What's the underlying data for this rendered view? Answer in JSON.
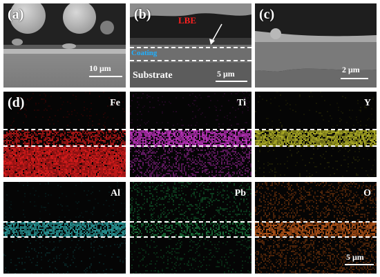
{
  "figure": {
    "panel_a": {
      "label": "(a)",
      "scale_bar": "10 μm"
    },
    "panel_b": {
      "label": "(b)",
      "lbe_label": "LBE",
      "coating_label": "Coating",
      "substrate_label": "Substrate",
      "scale_bar": "5 μm"
    },
    "panel_c": {
      "label": "(c)",
      "scale_bar": "2 μm"
    },
    "maps": [
      {
        "label": "(d)",
        "element": "Fe",
        "color": "#ff2020"
      },
      {
        "label": "",
        "element": "Ti",
        "color": "#e03ce0"
      },
      {
        "label": "",
        "element": "Y",
        "color": "#d8d830"
      },
      {
        "label": "",
        "element": "Al",
        "color": "#38d0d0"
      },
      {
        "label": "",
        "element": "Pb",
        "color": "#30e070"
      },
      {
        "label": "",
        "element": "O",
        "color": "#f07020",
        "scale_bar": "5 μm"
      }
    ]
  }
}
